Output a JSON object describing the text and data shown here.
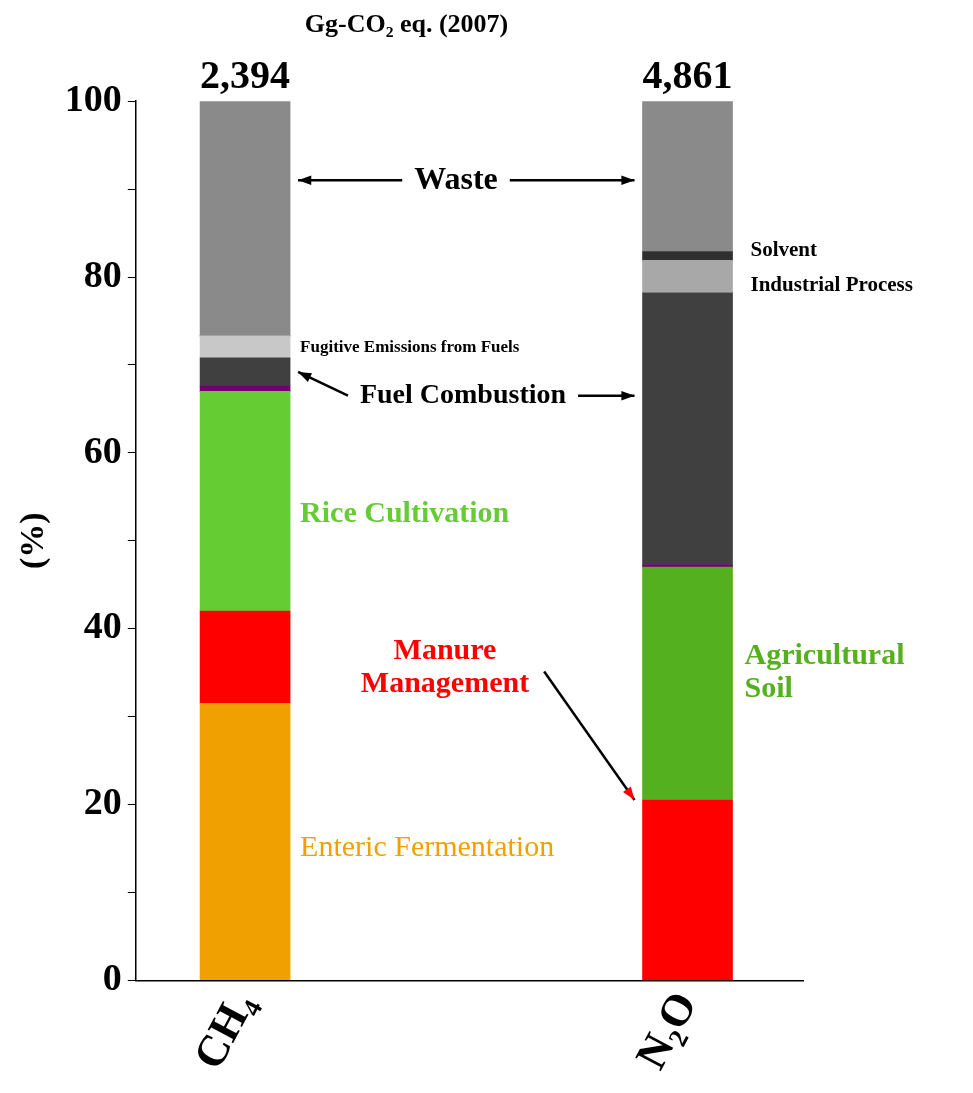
{
  "chart_data": {
    "type": "bar",
    "stacked": true,
    "title": "Gg-CO₂ eq. (2007)",
    "ylabel": "(%)",
    "categories": [
      "CH₄",
      "N₂O"
    ],
    "annotations": [
      {
        "text": "2,394",
        "x": "CH₄",
        "y": 100
      },
      {
        "text": "4,861",
        "x": "N₂O",
        "y": 100
      }
    ],
    "ylim": [
      0,
      100
    ],
    "yticks": [
      0,
      {
        "value": 10,
        "label": null
      },
      20,
      {
        "value": 30,
        "label": null
      },
      40,
      {
        "value": 50,
        "label": null
      },
      60,
      {
        "value": 70,
        "label": null
      },
      80,
      {
        "value": 90,
        "label": null
      },
      100
    ],
    "grid": false,
    "legend": false,
    "series": [
      {
        "name": "Enteric Fermentation",
        "color": "#f0a000",
        "values": [
          31.5,
          0
        ]
      },
      {
        "name": "Manure Management",
        "color": "#ff0000",
        "values": [
          10.5,
          20.5
        ]
      },
      {
        "name": "Rice Cultivation",
        "color": "#66cc33",
        "values": [
          25.0,
          0
        ]
      },
      {
        "name": "Agricultural Soil",
        "color": "#55b020",
        "values": [
          0,
          26.5
        ]
      },
      {
        "color": "#6e0070",
        "values": [
          0.6,
          0.3
        ]
      },
      {
        "name": "Fuel Combustion",
        "color": "#404040",
        "values": [
          3.2,
          30.9
        ]
      },
      {
        "name": "Fugitive Emissions from Fuels",
        "color": "#c8c8c8",
        "values": [
          2.5,
          0
        ]
      },
      {
        "name": "Industrial Process",
        "color": "#a8a8a8",
        "values": [
          0,
          3.7
        ]
      },
      {
        "name": "Solvent",
        "color": "#303030",
        "values": [
          0,
          1.0
        ]
      },
      {
        "name": "Waste",
        "color": "#8a8a8a",
        "values": [
          26.7,
          17.1
        ]
      }
    ]
  }
}
